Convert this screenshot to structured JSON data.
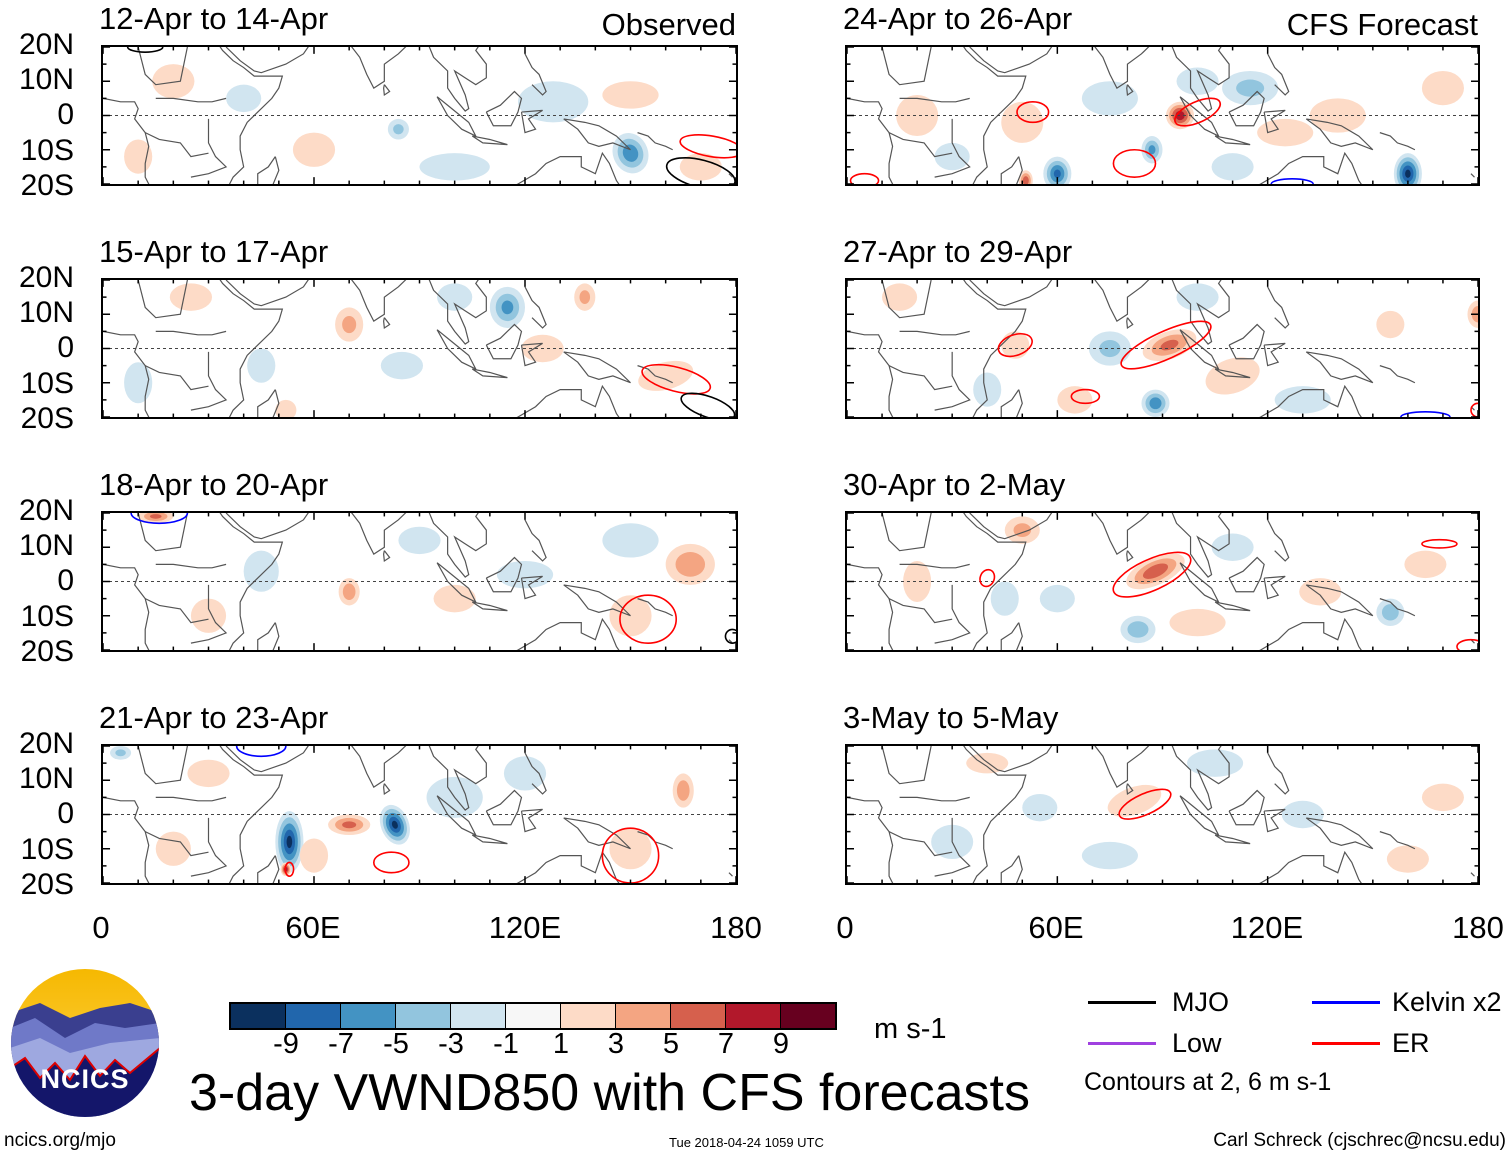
{
  "panels": [
    {
      "title": "12-Apr to 14-Apr",
      "tag": "Observed",
      "anomalies": [
        [
          150,
          -11,
          -7,
          5,
          6,
          -20
        ],
        [
          150,
          6,
          3,
          8,
          4,
          0
        ],
        [
          84,
          -4,
          -4,
          3,
          3,
          0
        ],
        [
          128,
          4,
          -2,
          10,
          6,
          0
        ],
        [
          60,
          -10,
          2,
          6,
          5,
          0
        ],
        [
          20,
          10,
          2,
          6,
          5,
          0
        ],
        [
          100,
          -15,
          -2,
          10,
          4,
          0
        ],
        [
          10,
          -12,
          2,
          4,
          5,
          0
        ],
        [
          170,
          -15,
          2,
          6,
          4,
          0
        ],
        [
          40,
          5,
          -2,
          5,
          4,
          0
        ]
      ],
      "contours": [
        {
          "type": "MJO",
          "lon": 170,
          "lat": -17,
          "rx": 10,
          "ry": 4,
          "rot": 15
        },
        {
          "type": "ER",
          "lon": 173,
          "lat": -9,
          "rx": 9,
          "ry": 3,
          "rot": 10
        },
        {
          "type": "MJO",
          "lon": 12,
          "lat": 20,
          "rx": 5,
          "ry": 1.5,
          "rot": 0
        }
      ]
    },
    {
      "title": "24-Apr to 26-Apr",
      "tag": "CFS Forecast",
      "anomalies": [
        [
          95,
          0,
          9,
          4,
          4,
          0
        ],
        [
          87,
          -10,
          -6,
          3,
          4,
          0
        ],
        [
          160,
          -17,
          -10,
          4,
          6,
          0
        ],
        [
          60,
          -17,
          -8,
          4,
          5,
          0
        ],
        [
          51,
          -19,
          7,
          2,
          3,
          0
        ],
        [
          50,
          -2,
          3,
          6,
          6,
          0
        ],
        [
          75,
          5,
          -3,
          8,
          5,
          0
        ],
        [
          115,
          8,
          -4,
          8,
          5,
          0
        ],
        [
          100,
          10,
          -3,
          6,
          4,
          0
        ],
        [
          140,
          0,
          3,
          8,
          5,
          0
        ],
        [
          125,
          -5,
          3,
          8,
          4,
          0
        ],
        [
          20,
          0,
          2,
          6,
          6,
          0
        ],
        [
          30,
          -12,
          -2,
          5,
          4,
          0
        ],
        [
          170,
          8,
          3,
          6,
          5,
          0
        ],
        [
          110,
          -15,
          -3,
          6,
          4,
          0
        ]
      ],
      "contours": [
        {
          "type": "ER",
          "lon": 53,
          "lat": 1,
          "rx": 4.5,
          "ry": 3,
          "rot": 0
        },
        {
          "type": "ER",
          "lon": 82,
          "lat": -14,
          "rx": 6,
          "ry": 4,
          "rot": 0
        },
        {
          "type": "ER",
          "lon": 100,
          "lat": 1,
          "rx": 7,
          "ry": 3,
          "rot": -25
        },
        {
          "type": "ER",
          "lon": 5,
          "lat": -19,
          "rx": 4,
          "ry": 2,
          "rot": 0
        },
        {
          "type": "Kelvin",
          "lon": 127,
          "lat": -20,
          "rx": 6,
          "ry": 1.5,
          "rot": 0
        }
      ]
    },
    {
      "title": "15-Apr to 17-Apr",
      "tag": "",
      "anomalies": [
        [
          115,
          12,
          -6,
          5,
          6,
          0
        ],
        [
          137,
          15,
          4,
          3,
          4,
          0
        ],
        [
          70,
          7,
          4,
          4,
          5,
          0
        ],
        [
          160,
          -8,
          3,
          8,
          4,
          -15
        ],
        [
          85,
          -5,
          -3,
          6,
          4,
          0
        ],
        [
          25,
          15,
          3,
          6,
          4,
          0
        ],
        [
          10,
          -10,
          -3,
          4,
          6,
          0
        ],
        [
          45,
          -5,
          -2,
          4,
          5,
          0
        ],
        [
          125,
          0,
          3,
          6,
          4,
          0
        ],
        [
          100,
          15,
          -3,
          5,
          4,
          0
        ],
        [
          52,
          -18,
          2,
          3,
          3,
          0
        ]
      ],
      "contours": [
        {
          "type": "ER",
          "lon": 163,
          "lat": -9,
          "rx": 10,
          "ry": 3.5,
          "rot": 15
        },
        {
          "type": "MJO",
          "lon": 172,
          "lat": -17,
          "rx": 8,
          "ry": 3,
          "rot": 20
        }
      ]
    },
    {
      "title": "27-Apr to 29-Apr",
      "tag": "",
      "anomalies": [
        [
          92,
          1,
          6,
          8,
          4,
          -20
        ],
        [
          88,
          -16,
          -7,
          4,
          4,
          0
        ],
        [
          75,
          0,
          -4,
          6,
          5,
          0
        ],
        [
          110,
          -8,
          3,
          8,
          5,
          -20
        ],
        [
          180,
          10,
          5,
          3,
          4,
          0
        ],
        [
          155,
          7,
          3,
          4,
          4,
          0
        ],
        [
          100,
          15,
          -3,
          6,
          4,
          0
        ],
        [
          48,
          1,
          3,
          4,
          4,
          0
        ],
        [
          15,
          15,
          3,
          5,
          4,
          0
        ],
        [
          130,
          -15,
          -3,
          8,
          4,
          0
        ],
        [
          40,
          -12,
          -2,
          4,
          5,
          0
        ],
        [
          65,
          -15,
          3,
          5,
          4,
          0
        ]
      ],
      "contours": [
        {
          "type": "ER",
          "lon": 91,
          "lat": 1,
          "rx": 14,
          "ry": 4,
          "rot": -25
        },
        {
          "type": "ER",
          "lon": 48,
          "lat": 1,
          "rx": 5,
          "ry": 3,
          "rot": -20
        },
        {
          "type": "ER",
          "lon": 68,
          "lat": -14,
          "rx": 4,
          "ry": 2,
          "rot": 0
        },
        {
          "type": "Kelvin",
          "lon": 165,
          "lat": -20,
          "rx": 7,
          "ry": 1.5,
          "rot": 0
        },
        {
          "type": "ER",
          "lon": 180,
          "lat": -18,
          "rx": 2,
          "ry": 2,
          "rot": 0
        }
      ]
    },
    {
      "title": "18-Apr to 20-Apr",
      "tag": "",
      "anomalies": [
        [
          70,
          -3,
          5,
          3,
          4,
          0
        ],
        [
          167,
          5,
          5,
          7,
          6,
          0
        ],
        [
          150,
          -10,
          3,
          6,
          6,
          0
        ],
        [
          45,
          3,
          -3,
          5,
          6,
          0
        ],
        [
          120,
          2,
          -2,
          8,
          4,
          0
        ],
        [
          15,
          19,
          6,
          5,
          2,
          0
        ],
        [
          150,
          12,
          -3,
          8,
          5,
          0
        ],
        [
          100,
          -5,
          2,
          6,
          4,
          0
        ],
        [
          30,
          -10,
          2,
          5,
          5,
          0
        ],
        [
          90,
          12,
          -2,
          6,
          4,
          0
        ]
      ],
      "contours": [
        {
          "type": "ER",
          "lon": 155,
          "lat": -11,
          "rx": 8,
          "ry": 7,
          "rot": 0
        },
        {
          "type": "Kelvin",
          "lon": 16,
          "lat": 20,
          "rx": 8,
          "ry": 3,
          "rot": 0
        },
        {
          "type": "MJO",
          "lon": 179,
          "lat": -16,
          "rx": 2,
          "ry": 2,
          "rot": 0
        }
      ]
    },
    {
      "title": "30-Apr to 2-May",
      "tag": "",
      "anomalies": [
        [
          88,
          3,
          7,
          9,
          4,
          -25
        ],
        [
          83,
          -14,
          -5,
          5,
          4,
          0
        ],
        [
          50,
          15,
          4,
          5,
          4,
          0
        ],
        [
          45,
          -5,
          -3,
          4,
          5,
          0
        ],
        [
          155,
          -9,
          -5,
          4,
          4,
          0
        ],
        [
          135,
          -3,
          3,
          6,
          4,
          0
        ],
        [
          60,
          -5,
          -3,
          5,
          4,
          0
        ],
        [
          110,
          10,
          -3,
          6,
          4,
          0
        ],
        [
          20,
          0,
          3,
          4,
          6,
          0
        ],
        [
          165,
          5,
          3,
          6,
          4,
          0
        ],
        [
          100,
          -12,
          3,
          8,
          4,
          0
        ]
      ],
      "contours": [
        {
          "type": "ER",
          "lon": 87,
          "lat": 2,
          "rx": 12,
          "ry": 4.5,
          "rot": -25
        },
        {
          "type": "ER",
          "lon": 40,
          "lat": 1,
          "rx": 2,
          "ry": 2.5,
          "rot": 20
        },
        {
          "type": "ER",
          "lon": 169,
          "lat": 11,
          "rx": 5,
          "ry": 1.2,
          "rot": 0
        },
        {
          "type": "ER",
          "lon": 178,
          "lat": -19,
          "rx": 4,
          "ry": 2,
          "rot": 0
        }
      ]
    },
    {
      "title": "21-Apr to 23-Apr",
      "tag": "",
      "anomalies": [
        [
          53,
          -8,
          -10,
          4,
          9,
          0
        ],
        [
          83,
          -3,
          -10,
          4,
          6,
          -20
        ],
        [
          70,
          -3,
          6,
          6,
          3,
          0
        ],
        [
          165,
          7,
          5,
          3,
          5,
          0
        ],
        [
          150,
          -10,
          3,
          6,
          6,
          0
        ],
        [
          52,
          -16,
          9,
          1.5,
          2,
          0
        ],
        [
          30,
          12,
          3,
          6,
          4,
          0
        ],
        [
          100,
          5,
          -2,
          8,
          6,
          0
        ],
        [
          60,
          -12,
          3,
          4,
          5,
          0
        ],
        [
          20,
          -10,
          2,
          5,
          5,
          0
        ],
        [
          120,
          12,
          -2,
          6,
          5,
          0
        ],
        [
          5,
          18,
          -4,
          3,
          2,
          0
        ]
      ],
      "contours": [
        {
          "type": "ER",
          "lon": 82,
          "lat": -14,
          "rx": 5,
          "ry": 3,
          "rot": 0
        },
        {
          "type": "ER",
          "lon": 150,
          "lat": -12,
          "rx": 8,
          "ry": 8,
          "rot": 0
        },
        {
          "type": "Kelvin",
          "lon": 45,
          "lat": 20,
          "rx": 7,
          "ry": 3,
          "rot": 0
        },
        {
          "type": "ER",
          "lon": 53,
          "lat": -16,
          "rx": 1.2,
          "ry": 2,
          "rot": 0
        }
      ]
    },
    {
      "title": "3-May to 5-May",
      "tag": "",
      "anomalies": [
        [
          82,
          4,
          3,
          8,
          4,
          -20
        ],
        [
          75,
          -12,
          -3,
          8,
          4,
          0
        ],
        [
          105,
          15,
          -3,
          8,
          4,
          0
        ],
        [
          160,
          -13,
          2,
          6,
          4,
          0
        ],
        [
          30,
          -8,
          -2,
          6,
          5,
          0
        ],
        [
          40,
          15,
          3,
          6,
          3,
          0
        ],
        [
          130,
          0,
          -2,
          6,
          4,
          0
        ],
        [
          170,
          5,
          2,
          6,
          4,
          0
        ],
        [
          55,
          2,
          -2,
          5,
          4,
          0
        ]
      ],
      "contours": [
        {
          "type": "ER",
          "lon": 85,
          "lat": 3,
          "rx": 8,
          "ry": 3,
          "rot": -25
        }
      ]
    }
  ],
  "axes": {
    "lat_labels": [
      "20N",
      "10N",
      "0",
      "10S",
      "20S"
    ],
    "lon_labels": [
      "0",
      "60E",
      "120E",
      "180"
    ]
  },
  "colorbar": {
    "colors": [
      "#0b305e",
      "#2166ac",
      "#4393c3",
      "#92c5de",
      "#d1e5f0",
      "#f7f7f7",
      "#fddbc7",
      "#f4a582",
      "#d6604d",
      "#b2182b",
      "#67001f"
    ],
    "labels": [
      "-9",
      "-7",
      "-5",
      "-3",
      "-1",
      "1",
      "3",
      "5",
      "7",
      "9"
    ],
    "units": "m s-1"
  },
  "legend": {
    "items": [
      {
        "label": "MJO",
        "color": "#000000"
      },
      {
        "label": "Kelvin x2",
        "color": "#0000ff"
      },
      {
        "label": "Low",
        "color": "#a040e0"
      },
      {
        "label": "ER",
        "color": "#ff0000"
      }
    ],
    "note": "Contours at 2, 6 m s-1"
  },
  "title": "3-day VWND850 with CFS forecasts",
  "logo_text": "NCICS",
  "footer": {
    "left": "ncics.org/mjo",
    "center": "Tue 2018-04-24 1059 UTC",
    "right": "Carl Schreck (cjschrec@ncsu.edu)"
  }
}
